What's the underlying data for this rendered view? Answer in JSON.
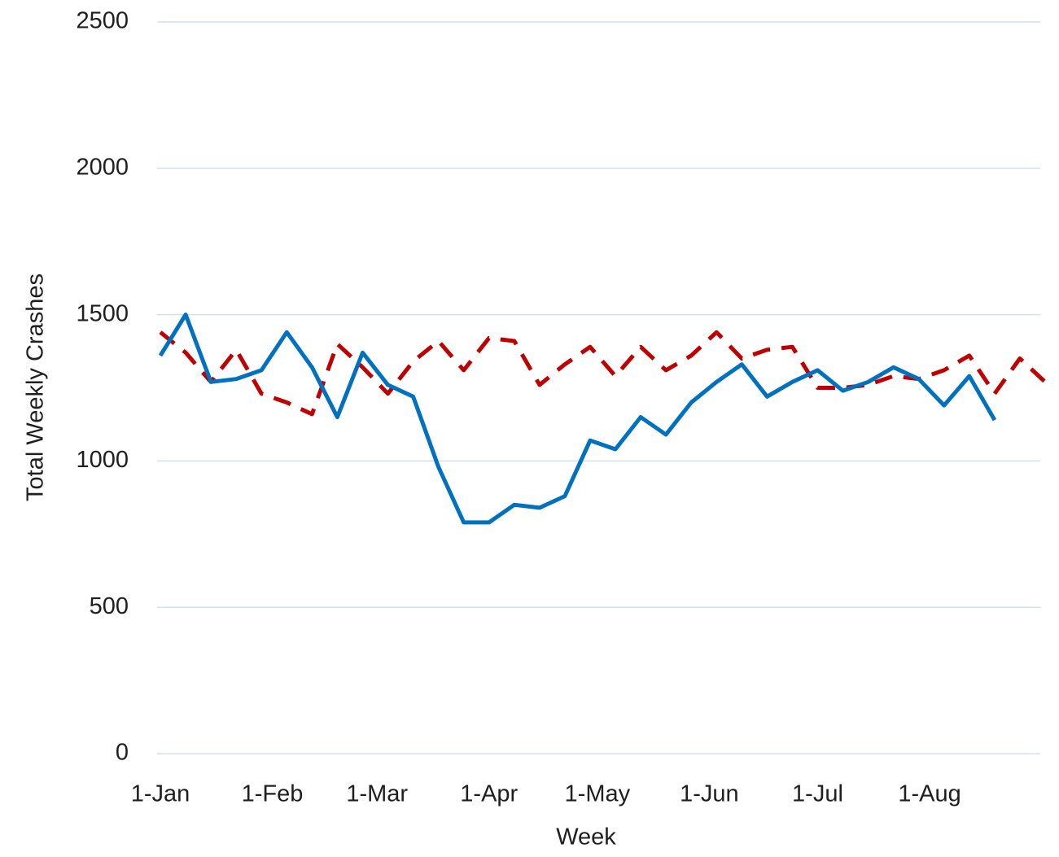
{
  "chart_data": {
    "type": "line",
    "x_label": "Week",
    "y_label": "Total Weekly Crashes",
    "x": [
      "1-Jan",
      "8-Jan",
      "15-Jan",
      "22-Jan",
      "29-Jan",
      "5-Feb",
      "12-Feb",
      "19-Feb",
      "26-Feb",
      "4-Mar",
      "11-Mar",
      "18-Mar",
      "25-Mar",
      "1-Apr",
      "8-Apr",
      "15-Apr",
      "22-Apr",
      "29-Apr",
      "6-May",
      "13-May",
      "20-May",
      "27-May",
      "3-Jun",
      "10-Jun",
      "17-Jun",
      "24-Jun",
      "1-Jul",
      "8-Jul",
      "15-Jul",
      "22-Jul",
      "29-Jul",
      "5-Aug",
      "12-Aug",
      "19-Aug",
      "26-Aug",
      "2-Sep"
    ],
    "series": [
      {
        "color": "#0070c0",
        "dash": false,
        "values": [
          1360,
          1500,
          1270,
          1280,
          1310,
          1440,
          1320,
          1150,
          1370,
          1260,
          1220,
          980,
          790,
          790,
          850,
          840,
          880,
          1070,
          1040,
          1150,
          1090,
          1200,
          1270,
          1330,
          1220,
          1270,
          1310,
          1240,
          1270,
          1320,
          1280,
          1190,
          1290,
          1140,
          null,
          null
        ]
      },
      {
        "color": "#c00000",
        "dash": true,
        "values": [
          1440,
          1370,
          1270,
          1380,
          1230,
          1200,
          1160,
          1400,
          1320,
          1230,
          1340,
          1410,
          1310,
          1420,
          1410,
          1260,
          1330,
          1390,
          1290,
          1390,
          1310,
          1360,
          1440,
          1350,
          1380,
          1390,
          1250,
          1250,
          1260,
          1290,
          1280,
          1310,
          1360,
          1230,
          1350,
          1270
        ]
      }
    ],
    "xlim": [
      "1-Jan",
      "2-Sep"
    ],
    "xticks": [
      "1-Jan",
      "1-Feb",
      "1-Mar",
      "1-Apr",
      "1-May",
      "1-Jun",
      "1-Jul",
      "1-Aug"
    ],
    "ylim": [
      0,
      2500
    ],
    "yticks": [
      0,
      500,
      1000,
      1500,
      2000,
      2500
    ],
    "grid": true
  }
}
